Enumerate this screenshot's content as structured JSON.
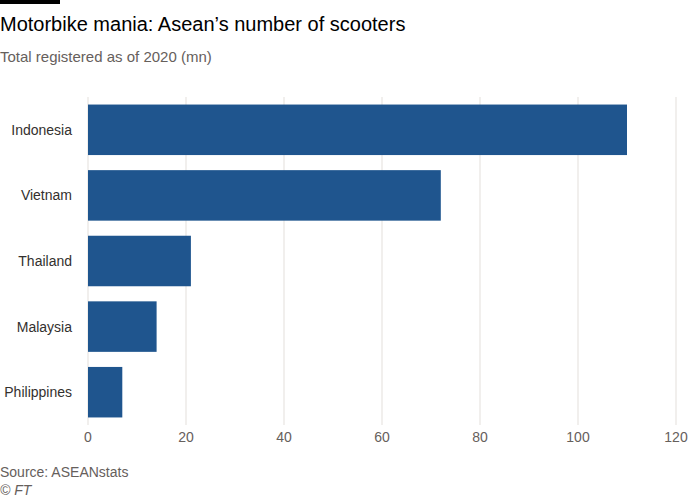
{
  "chart_data": {
    "type": "bar",
    "orientation": "horizontal",
    "title": "Motorbike mania: Asean’s number of scooters",
    "subtitle": "Total registered as of 2020 (mn)",
    "source": "Source: ASEANstats",
    "credit": "© FT",
    "categories": [
      "Indonesia",
      "Vietnam",
      "Thailand",
      "Malaysia",
      "Philippines"
    ],
    "values": [
      110,
      72,
      21,
      14,
      7
    ],
    "color": "#1f558e",
    "xlim": [
      0,
      120
    ],
    "xticks": [
      0,
      20,
      40,
      60,
      80,
      100,
      120
    ],
    "grid": true
  }
}
